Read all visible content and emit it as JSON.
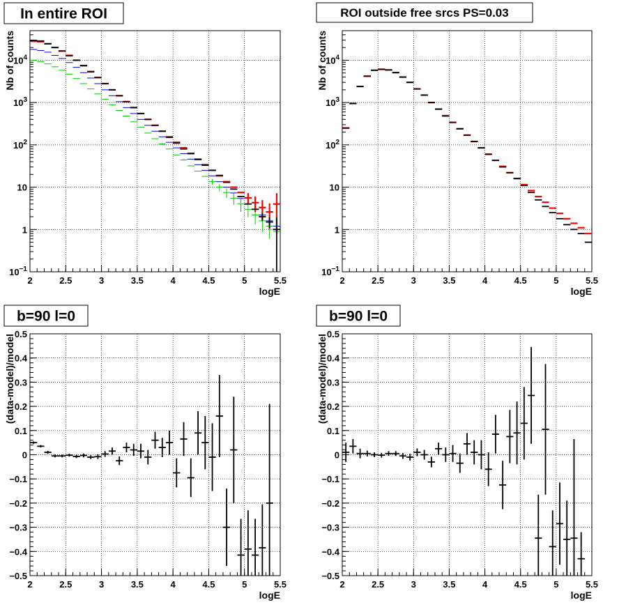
{
  "colors": {
    "data": "#000000",
    "model_total": "#ff0000",
    "model_a": "#0000ff",
    "model_b": "#00cc00",
    "grid": "#000000"
  },
  "chart_data": [
    {
      "type": "scatter",
      "title": "In entire ROI",
      "xlabel": "logE",
      "ylabel": "Nb of counts",
      "xlim": [
        2,
        5.5
      ],
      "ylim": [
        0.1,
        50000
      ],
      "y_scale": "log",
      "x_ticks": [
        "2",
        "2.5",
        "3",
        "3.5",
        "4",
        "4.5",
        "5",
        "5.5"
      ],
      "y_ticks": [
        {
          "label_base": "10",
          "label_exp": "−1",
          "value": 0.1
        },
        {
          "label_base": "1",
          "label_exp": "",
          "value": 1
        },
        {
          "label_base": "10",
          "label_exp": "",
          "value": 10
        },
        {
          "label_base": "10",
          "label_exp": "2",
          "value": 100
        },
        {
          "label_base": "10",
          "label_exp": "3",
          "value": 1000
        },
        {
          "label_base": "10",
          "label_exp": "4",
          "value": 10000
        }
      ],
      "grid": true,
      "x": [
        2.05,
        2.15,
        2.25,
        2.35,
        2.45,
        2.55,
        2.65,
        2.75,
        2.85,
        2.95,
        3.05,
        3.15,
        3.25,
        3.35,
        3.45,
        3.55,
        3.65,
        3.75,
        3.85,
        3.95,
        4.05,
        4.15,
        4.25,
        4.35,
        4.45,
        4.55,
        4.65,
        4.75,
        4.85,
        4.95,
        5.05,
        5.15,
        5.25,
        5.35,
        5.45
      ],
      "series": [
        {
          "color_key": "model_b",
          "values": [
            10000,
            9200,
            8200,
            7000,
            5800,
            4700,
            3700,
            2800,
            2100,
            1600,
            1200,
            880,
            650,
            480,
            350,
            260,
            190,
            140,
            105,
            80,
            58,
            44,
            32,
            24,
            18,
            13.5,
            10,
            7.5,
            5.5,
            4,
            3,
            2.2,
            1.6,
            1.2,
            0.9
          ],
          "err": [
            0,
            0,
            0,
            0,
            0,
            0,
            0,
            0,
            0,
            0,
            0,
            0,
            0,
            0,
            0,
            0,
            0,
            0,
            0,
            0,
            0,
            0,
            0,
            0,
            0,
            0.15,
            0.2,
            0.25,
            0.3,
            0.35,
            0.35,
            0.4,
            0.45,
            0.5,
            0.6
          ]
        },
        {
          "color_key": "model_a",
          "values": [
            18000,
            17000,
            15500,
            13000,
            11000,
            8800,
            6800,
            5100,
            3800,
            2800,
            2000,
            1450,
            1050,
            760,
            550,
            400,
            290,
            210,
            155,
            115,
            85,
            62,
            46,
            34,
            25,
            18.5,
            13.5,
            10,
            7.3,
            5.4,
            4,
            3,
            2.2,
            1.6,
            1.2
          ],
          "err": [
            0,
            0,
            0,
            0,
            0,
            0,
            0,
            0,
            0,
            0,
            0,
            0,
            0,
            0,
            0,
            0,
            0,
            0,
            0,
            0,
            0,
            0,
            0,
            0,
            0,
            0,
            0,
            0,
            0,
            0,
            0,
            0,
            0,
            0,
            0.4
          ]
        },
        {
          "color_key": "model_total",
          "values": [
            28000,
            27500,
            24500,
            20000,
            16500,
            13000,
            10000,
            7500,
            5400,
            3900,
            2800,
            2000,
            1450,
            1050,
            760,
            550,
            400,
            290,
            210,
            155,
            115,
            85,
            63,
            46,
            34,
            25,
            18.5,
            13.5,
            10,
            7.5,
            5.6,
            4.3,
            3.3,
            2.6,
            4
          ],
          "err": [
            0,
            0,
            0,
            0,
            0,
            0,
            0,
            0,
            0,
            0,
            0,
            0,
            0,
            0,
            0,
            0,
            0,
            0,
            0,
            0,
            0,
            0,
            0,
            0,
            0,
            0,
            0,
            0,
            0,
            0,
            0.3,
            0.4,
            0.5,
            0.6,
            0.8
          ]
        },
        {
          "color_key": "data",
          "values": [
            29500,
            28500,
            24500,
            20000,
            16500,
            12800,
            10000,
            7400,
            5300,
            3900,
            2800,
            2000,
            1450,
            1050,
            760,
            550,
            400,
            290,
            210,
            150,
            110,
            80,
            62,
            45,
            33,
            25,
            19,
            13,
            9,
            6,
            4,
            3,
            2,
            1.5,
            1
          ],
          "err": [
            0,
            0,
            0,
            0,
            0,
            0,
            0,
            0,
            0,
            0,
            0,
            0,
            0,
            0,
            0,
            0,
            0,
            0,
            0,
            0,
            0,
            0,
            0,
            0,
            0,
            0,
            0,
            0,
            0,
            0,
            0,
            0,
            0.2,
            0.3,
            0.9
          ]
        }
      ]
    },
    {
      "type": "scatter",
      "title": "ROI outside free srcs PS=0.03",
      "xlabel": "logE",
      "ylabel": "Nb of counts",
      "xlim": [
        2,
        5.5
      ],
      "ylim": [
        0.1,
        50000
      ],
      "y_scale": "log",
      "x_ticks": [
        "2",
        "2.5",
        "3",
        "3.5",
        "4",
        "4.5",
        "5",
        "5.5"
      ],
      "y_ticks": [
        {
          "label_base": "10",
          "label_exp": "−1",
          "value": 0.1
        },
        {
          "label_base": "1",
          "label_exp": "",
          "value": 1
        },
        {
          "label_base": "10",
          "label_exp": "",
          "value": 10
        },
        {
          "label_base": "10",
          "label_exp": "2",
          "value": 100
        },
        {
          "label_base": "10",
          "label_exp": "3",
          "value": 1000
        },
        {
          "label_base": "10",
          "label_exp": "4",
          "value": 10000
        }
      ],
      "grid": true,
      "x": [
        2.05,
        2.15,
        2.25,
        2.35,
        2.45,
        2.55,
        2.65,
        2.75,
        2.85,
        2.95,
        3.05,
        3.15,
        3.25,
        3.35,
        3.45,
        3.55,
        3.65,
        3.75,
        3.85,
        3.95,
        4.05,
        4.15,
        4.25,
        4.35,
        4.45,
        4.55,
        4.65,
        4.75,
        4.85,
        4.95,
        5.05,
        5.15,
        5.25,
        5.35,
        5.45
      ],
      "series": [
        {
          "color_key": "model_total",
          "values": [
            250,
            950,
            2400,
            4200,
            5800,
            6100,
            5900,
            5100,
            4000,
            3000,
            2100,
            1500,
            1000,
            700,
            490,
            340,
            240,
            170,
            120,
            85,
            60,
            43,
            31,
            22,
            16,
            11.5,
            8.3,
            6,
            4.4,
            3.2,
            2.4,
            1.8,
            1.4,
            1.1,
            0.8
          ],
          "err": [
            0,
            0,
            0,
            0,
            0,
            0,
            0,
            0,
            0,
            0,
            0,
            0,
            0,
            0,
            0,
            0,
            0,
            0,
            0,
            0,
            0,
            0,
            0,
            0,
            0,
            0,
            0,
            0,
            0,
            0,
            0,
            0,
            0,
            0,
            0
          ]
        },
        {
          "color_key": "data",
          "values": [
            250,
            950,
            2400,
            4200,
            5800,
            6100,
            5900,
            5100,
            4000,
            3000,
            2100,
            1500,
            1000,
            700,
            480,
            340,
            240,
            170,
            120,
            85,
            60,
            43,
            30,
            22,
            16,
            11,
            7.5,
            5,
            3.5,
            2.5,
            1.8,
            1.3,
            1,
            0.8,
            0.5
          ],
          "err": [
            0,
            0,
            0,
            0,
            0,
            0,
            0,
            0,
            0,
            0,
            0,
            0,
            0,
            0,
            0,
            0,
            0,
            0,
            0,
            0,
            0,
            0,
            0,
            0,
            0,
            0,
            0,
            0,
            0,
            0,
            0,
            0,
            0,
            0,
            0
          ]
        }
      ]
    },
    {
      "type": "scatter",
      "title": "b=90 l=0",
      "xlabel": "logE",
      "ylabel": "(data-model)/model",
      "xlim": [
        2,
        5.5
      ],
      "ylim": [
        -0.5,
        0.5
      ],
      "y_scale": "linear",
      "x_ticks": [
        "2",
        "2.5",
        "3",
        "3.5",
        "4",
        "4.5",
        "5",
        "5.5"
      ],
      "y_ticks": [
        {
          "label_base": "−0.5",
          "label_exp": "",
          "value": -0.5
        },
        {
          "label_base": "−0.4",
          "label_exp": "",
          "value": -0.4
        },
        {
          "label_base": "−0.3",
          "label_exp": "",
          "value": -0.3
        },
        {
          "label_base": "−0.2",
          "label_exp": "",
          "value": -0.2
        },
        {
          "label_base": "−0.1",
          "label_exp": "",
          "value": -0.1
        },
        {
          "label_base": "0",
          "label_exp": "",
          "value": 0
        },
        {
          "label_base": "0.1",
          "label_exp": "",
          "value": 0.1
        },
        {
          "label_base": "0.2",
          "label_exp": "",
          "value": 0.2
        },
        {
          "label_base": "0.3",
          "label_exp": "",
          "value": 0.3
        },
        {
          "label_base": "0.4",
          "label_exp": "",
          "value": 0.4
        },
        {
          "label_base": "0.5",
          "label_exp": "",
          "value": 0.5
        }
      ],
      "grid": true,
      "x": [
        2.05,
        2.15,
        2.25,
        2.35,
        2.45,
        2.55,
        2.65,
        2.75,
        2.85,
        2.95,
        3.05,
        3.15,
        3.25,
        3.35,
        3.45,
        3.55,
        3.65,
        3.75,
        3.85,
        3.95,
        4.05,
        4.15,
        4.25,
        4.35,
        4.45,
        4.55,
        4.65,
        4.75,
        4.85,
        4.95,
        5.05,
        5.15,
        5.25,
        5.35,
        5.45
      ],
      "series": [
        {
          "color_key": "data",
          "values": [
            0.05,
            0.035,
            0.01,
            -0.005,
            -0.005,
            -0.002,
            -0.007,
            -0.003,
            -0.01,
            -0.008,
            0.003,
            0.015,
            -0.025,
            0.03,
            0.02,
            0.015,
            -0.01,
            0.06,
            0.03,
            0.05,
            -0.075,
            0.065,
            -0.095,
            0.09,
            0.05,
            -0.01,
            0.16,
            -0.3,
            0.02,
            -0.415,
            -0.39,
            -0.415,
            -0.385,
            -0.2,
            null
          ],
          "err": [
            0.005,
            0.005,
            0.006,
            0.006,
            0.006,
            0.006,
            0.007,
            0.008,
            0.008,
            0.01,
            0.012,
            0.015,
            0.018,
            0.02,
            0.025,
            0.03,
            0.03,
            0.035,
            0.04,
            0.05,
            0.06,
            0.07,
            0.08,
            0.09,
            0.11,
            0.14,
            0.17,
            0.16,
            0.22,
            0.15,
            0.16,
            0.15,
            0.18,
            0.41,
            0
          ]
        }
      ]
    },
    {
      "type": "scatter",
      "title": "b=90 l=0",
      "xlabel": "logE",
      "ylabel": "(data-model)/model",
      "xlim": [
        2,
        5.5
      ],
      "ylim": [
        -0.5,
        0.5
      ],
      "y_scale": "linear",
      "x_ticks": [
        "2",
        "2.5",
        "3",
        "3.5",
        "4",
        "4.5",
        "5",
        "5.5"
      ],
      "y_ticks": [
        {
          "label_base": "−0.5",
          "label_exp": "",
          "value": -0.5
        },
        {
          "label_base": "−0.4",
          "label_exp": "",
          "value": -0.4
        },
        {
          "label_base": "−0.3",
          "label_exp": "",
          "value": -0.3
        },
        {
          "label_base": "−0.2",
          "label_exp": "",
          "value": -0.2
        },
        {
          "label_base": "−0.1",
          "label_exp": "",
          "value": -0.1
        },
        {
          "label_base": "0",
          "label_exp": "",
          "value": 0
        },
        {
          "label_base": "0.1",
          "label_exp": "",
          "value": 0.1
        },
        {
          "label_base": "0.2",
          "label_exp": "",
          "value": 0.2
        },
        {
          "label_base": "0.3",
          "label_exp": "",
          "value": 0.3
        },
        {
          "label_base": "0.4",
          "label_exp": "",
          "value": 0.4
        },
        {
          "label_base": "0.5",
          "label_exp": "",
          "value": 0.5
        }
      ],
      "grid": true,
      "x": [
        2.05,
        2.15,
        2.25,
        2.35,
        2.45,
        2.55,
        2.65,
        2.75,
        2.85,
        2.95,
        3.05,
        3.15,
        3.25,
        3.35,
        3.45,
        3.55,
        3.65,
        3.75,
        3.85,
        3.95,
        4.05,
        4.15,
        4.25,
        4.35,
        4.45,
        4.55,
        4.65,
        4.75,
        4.85,
        4.95,
        5.05,
        5.15,
        5.25,
        5.35,
        5.45
      ],
      "series": [
        {
          "color_key": "data",
          "values": [
            0.01,
            0.035,
            0.005,
            0.005,
            0,
            -0.002,
            0.005,
            0.005,
            -0.005,
            -0.01,
            0.01,
            0.0,
            -0.03,
            0.025,
            0.0,
            0.005,
            -0.035,
            0.045,
            0.01,
            0.0,
            -0.06,
            0.085,
            -0.125,
            0.075,
            0.09,
            0.13,
            0.245,
            -0.345,
            0.105,
            -0.38,
            -0.285,
            -0.35,
            -0.345,
            -0.43,
            null
          ],
          "err": [
            0.04,
            0.03,
            0.02,
            0.012,
            0.01,
            0.01,
            0.01,
            0.01,
            0.012,
            0.014,
            0.016,
            0.02,
            0.022,
            0.025,
            0.03,
            0.035,
            0.04,
            0.045,
            0.05,
            0.06,
            0.07,
            0.08,
            0.1,
            0.11,
            0.13,
            0.15,
            0.2,
            0.18,
            0.27,
            0.15,
            0.17,
            0.16,
            0.41,
            0.11,
            0
          ]
        }
      ]
    }
  ]
}
